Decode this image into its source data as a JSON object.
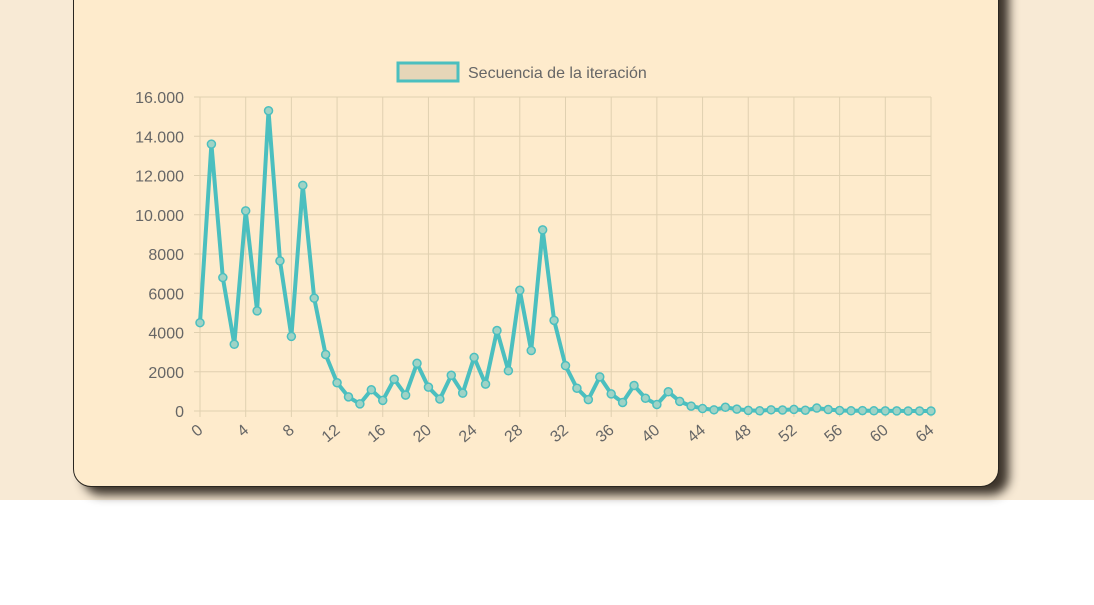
{
  "chart_data": {
    "type": "line",
    "legend": {
      "label": "Secuencia de la iteración",
      "position": "top"
    },
    "colors": {
      "line": "#4bbfbf",
      "legend_fill": "#e6d6b8",
      "grid": "#e0d0b0"
    },
    "x": [
      0,
      1,
      2,
      3,
      4,
      5,
      6,
      7,
      8,
      9,
      10,
      11,
      12,
      13,
      14,
      15,
      16,
      17,
      18,
      19,
      20,
      21,
      22,
      23,
      24,
      25,
      26,
      27,
      28,
      29,
      30,
      31,
      32,
      33,
      34,
      35,
      36,
      37,
      38,
      39,
      40,
      41,
      42,
      43,
      44,
      45,
      46,
      47,
      48,
      49,
      50,
      51,
      52,
      53,
      54,
      55,
      56,
      57,
      58,
      59,
      60,
      61,
      62,
      63,
      64
    ],
    "values": [
      4500,
      13600,
      6800,
      3400,
      10200,
      5100,
      15300,
      7650,
      3800,
      11500,
      5750,
      2880,
      1440,
      720,
      360,
      1080,
      540,
      1620,
      810,
      2430,
      1215,
      610,
      1820,
      910,
      2730,
      1370,
      4100,
      2050,
      6150,
      3080,
      9230,
      4620,
      2310,
      1160,
      580,
      1740,
      870,
      435,
      1300,
      650,
      330,
      980,
      490,
      250,
      125,
      60,
      190,
      95,
      30,
      10,
      60,
      50,
      80,
      40,
      150,
      75,
      25,
      10,
      20,
      10,
      5,
      5,
      2,
      2,
      1
    ],
    "xticks": [
      0,
      4,
      8,
      12,
      16,
      20,
      24,
      28,
      32,
      36,
      40,
      44,
      48,
      52,
      56,
      60,
      64
    ],
    "yticks": [
      0,
      2000,
      4000,
      6000,
      8000,
      10000,
      12000,
      14000,
      16000
    ],
    "ytick_labels": [
      "0",
      "2000",
      "4000",
      "6000",
      "8000",
      "10.000",
      "12.000",
      "14.000",
      "16.000"
    ],
    "ylim": [
      0,
      16000
    ],
    "xlim": [
      0,
      64
    ],
    "grid": true
  }
}
